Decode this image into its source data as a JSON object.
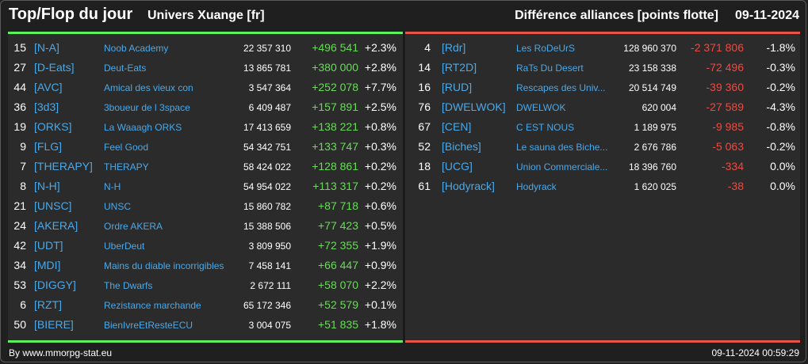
{
  "header": {
    "title": "Top/Flop du jour",
    "universe": "Univers Xuange [fr]",
    "diff_label": "Différence alliances [points flotte]",
    "date": "09-11-2024"
  },
  "colors": {
    "positive": "#66dd55",
    "negative": "#ee4a40",
    "link": "#4aa8e8",
    "top_border": "#5df05d",
    "flop_border": "#e5534b"
  },
  "top": [
    {
      "rank": "15",
      "tag": "[N-A]",
      "name": "Noob Academy",
      "points": "22 357 310",
      "diff": "+496 541",
      "pct": "+2.3%"
    },
    {
      "rank": "27",
      "tag": "[D-Eats]",
      "name": "Deut-Eats",
      "points": "13 865 781",
      "diff": "+380 000",
      "pct": "+2.8%"
    },
    {
      "rank": "44",
      "tag": "[AVC]",
      "name": "Amical des vieux con",
      "points": "3 547 364",
      "diff": "+252 078",
      "pct": "+7.7%"
    },
    {
      "rank": "36",
      "tag": "[3d3]",
      "name": "3boueur de l 3space",
      "points": "6 409 487",
      "diff": "+157 891",
      "pct": "+2.5%"
    },
    {
      "rank": "19",
      "tag": "[ORKS]",
      "name": "La Waaagh ORKS",
      "points": "17 413 659",
      "diff": "+138 221",
      "pct": "+0.8%"
    },
    {
      "rank": "9",
      "tag": "[FLG]",
      "name": "Feel Good",
      "points": "54 342 751",
      "diff": "+133 747",
      "pct": "+0.3%"
    },
    {
      "rank": "7",
      "tag": "[THERAPY]",
      "name": "THERAPY",
      "points": "58 424 022",
      "diff": "+128 861",
      "pct": "+0.2%"
    },
    {
      "rank": "8",
      "tag": "[N-H]",
      "name": "N-H",
      "points": "54 954 022",
      "diff": "+113 317",
      "pct": "+0.2%"
    },
    {
      "rank": "21",
      "tag": "[UNSC]",
      "name": "UNSC",
      "points": "15 860 782",
      "diff": "+87 718",
      "pct": "+0.6%"
    },
    {
      "rank": "24",
      "tag": "[AKERA]",
      "name": "Ordre AKERA",
      "points": "15 388 506",
      "diff": "+77 423",
      "pct": "+0.5%"
    },
    {
      "rank": "42",
      "tag": "[UDT]",
      "name": "UberDeut",
      "points": "3 809 950",
      "diff": "+72 355",
      "pct": "+1.9%"
    },
    {
      "rank": "34",
      "tag": "[MDI]",
      "name": "Mains du diable incorrigibles",
      "points": "7 458 141",
      "diff": "+66 447",
      "pct": "+0.9%"
    },
    {
      "rank": "53",
      "tag": "[DIGGY]",
      "name": "The Dwarfs",
      "points": "2 672 111",
      "diff": "+58 070",
      "pct": "+2.2%"
    },
    {
      "rank": "6",
      "tag": "[RZT]",
      "name": "Rezistance marchande",
      "points": "65 172 346",
      "diff": "+52 579",
      "pct": "+0.1%"
    },
    {
      "rank": "50",
      "tag": "[BIERE]",
      "name": "BienIvreEtResteECU",
      "points": "3 004 075",
      "diff": "+51 835",
      "pct": "+1.8%"
    }
  ],
  "flop": [
    {
      "rank": "4",
      "tag": "[Rdr]",
      "name": "Les RoDeUrS",
      "points": "128 960 370",
      "diff": "-2 371 806",
      "pct": "-1.8%"
    },
    {
      "rank": "14",
      "tag": "[RT2D]",
      "name": "RaTs Du Desert",
      "points": "23 158 338",
      "diff": "-72 496",
      "pct": "-0.3%"
    },
    {
      "rank": "16",
      "tag": "[RUD]",
      "name": "Rescapes des Univ...",
      "points": "20 514 749",
      "diff": "-39 360",
      "pct": "-0.2%"
    },
    {
      "rank": "76",
      "tag": "[DWELWOK]",
      "name": "DWELWOK",
      "points": "620 004",
      "diff": "-27 589",
      "pct": "-4.3%"
    },
    {
      "rank": "67",
      "tag": "[CEN]",
      "name": "C EST NOUS",
      "points": "1 189 975",
      "diff": "-9 985",
      "pct": "-0.8%"
    },
    {
      "rank": "52",
      "tag": "[Biches]",
      "name": "Le sauna des Biche...",
      "points": "2 676 786",
      "diff": "-5 063",
      "pct": "-0.2%"
    },
    {
      "rank": "18",
      "tag": "[UCG]",
      "name": "Union Commerciale...",
      "points": "18 396 760",
      "diff": "-334",
      "pct": "0.0%"
    },
    {
      "rank": "61",
      "tag": "[Hodyrack]",
      "name": "Hodyrack",
      "points": "1 620 025",
      "diff": "-38",
      "pct": "0.0%"
    }
  ],
  "footer": {
    "credit": "By www.mmorpg-stat.eu",
    "timestamp": "09-11-2024 00:59:29"
  }
}
